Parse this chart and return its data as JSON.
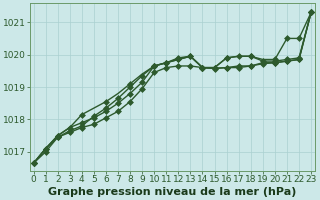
{
  "xlabel": "Graphe pression niveau de la mer (hPa)",
  "bg_color": "#cce8e8",
  "grid_color": "#aad0d0",
  "line_color": "#2d5a2d",
  "ylim": [
    1016.4,
    1021.6
  ],
  "xlim": [
    -0.3,
    23.3
  ],
  "yticks": [
    1017,
    1018,
    1019,
    1020,
    1021
  ],
  "xticks": [
    0,
    1,
    2,
    3,
    4,
    5,
    6,
    7,
    8,
    9,
    10,
    11,
    12,
    13,
    14,
    15,
    16,
    17,
    18,
    19,
    20,
    21,
    22,
    23
  ],
  "series": [
    {
      "y": [
        1016.65,
        1017.0,
        1017.45,
        1017.6,
        1017.75,
        1017.85,
        1018.05,
        1018.25,
        1018.55,
        1018.95,
        1019.45,
        1019.6,
        1019.65,
        1019.65,
        1019.6,
        1019.58,
        1019.6,
        1019.65,
        1019.65,
        1019.72,
        1019.75,
        1019.8,
        1019.85,
        1021.3
      ],
      "ls": "-",
      "lw": 1.0,
      "ms": 3.0,
      "marker": "D",
      "markevery": [
        0,
        1,
        2,
        3,
        4,
        5,
        6,
        7,
        8,
        9,
        10,
        11,
        12,
        13,
        14,
        15,
        16,
        17,
        18,
        19,
        20,
        21,
        22,
        23
      ]
    },
    {
      "y": [
        1016.65,
        1017.1,
        1017.5,
        1017.75,
        1017.9,
        1018.05,
        1018.25,
        1018.5,
        1018.8,
        1019.15,
        1019.65,
        1019.75,
        1019.9,
        1019.95,
        1019.6,
        1019.57,
        1019.6,
        1019.6,
        1019.65,
        1019.75,
        1019.75,
        1019.8,
        1019.85,
        1021.3
      ],
      "ls": "-",
      "lw": 1.0,
      "ms": 3.0,
      "marker": "D",
      "markevery": [
        0,
        1,
        2,
        3,
        4,
        5,
        6,
        7,
        8,
        9,
        10,
        11,
        12,
        13,
        14,
        15,
        16,
        17,
        18,
        19,
        20,
        21,
        22,
        23
      ]
    },
    {
      "y": [
        1016.65,
        1017.1,
        1017.45,
        1017.65,
        1017.8,
        1018.1,
        1018.35,
        1018.65,
        1019.0,
        1019.35,
        1019.65,
        1019.75,
        1019.85,
        1019.95,
        1019.6,
        1019.6,
        1019.9,
        1019.95,
        1019.95,
        1019.8,
        1019.8,
        1019.85,
        1019.9,
        1021.3
      ],
      "ls": "-",
      "lw": 1.0,
      "ms": 3.0,
      "marker": "D",
      "markevery": [
        0,
        1,
        2,
        3,
        4,
        5,
        6,
        7,
        8,
        9,
        10,
        11,
        12,
        13,
        14,
        15,
        16,
        17,
        18,
        19,
        20,
        21,
        22,
        23
      ]
    },
    {
      "y": [
        1016.65,
        1017.1,
        1017.5,
        1017.75,
        1018.15,
        1018.35,
        1018.55,
        1018.8,
        1019.1,
        1019.4,
        1019.65,
        1019.75,
        1019.85,
        1019.95,
        1019.6,
        1019.6,
        1019.9,
        1019.95,
        1019.95,
        1019.85,
        1019.85,
        1020.5,
        1020.5,
        1021.3
      ],
      "ls": "-",
      "lw": 1.0,
      "ms": 3.0,
      "marker": "D",
      "markevery": [
        0,
        2,
        4,
        6,
        8,
        10,
        12,
        14,
        16,
        18,
        20,
        21,
        22,
        23
      ]
    }
  ],
  "xlabel_fontsize": 8,
  "tick_fontsize": 6.5,
  "xlabel_color": "#1a3a1a",
  "tick_color": "#2d5a2d"
}
